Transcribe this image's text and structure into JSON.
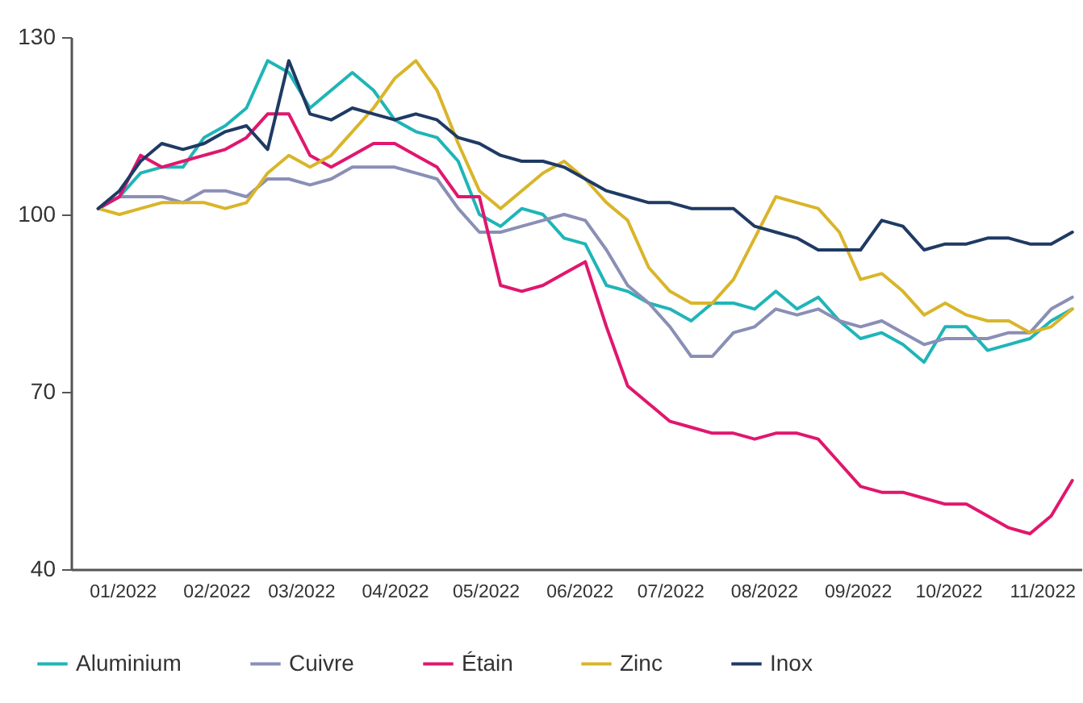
{
  "chart_data": {
    "type": "line",
    "x": [
      "2022-01-07",
      "2022-01-14",
      "2022-01-21",
      "2022-01-28",
      "2022-02-04",
      "2022-02-11",
      "2022-02-18",
      "2022-02-25",
      "2022-03-04",
      "2022-03-11",
      "2022-03-18",
      "2022-03-25",
      "2022-04-01",
      "2022-04-08",
      "2022-04-15",
      "2022-04-22",
      "2022-04-29",
      "2022-05-06",
      "2022-05-13",
      "2022-05-20",
      "2022-05-27",
      "2022-06-03",
      "2022-06-10",
      "2022-06-17",
      "2022-06-24",
      "2022-07-01",
      "2022-07-08",
      "2022-07-15",
      "2022-07-22",
      "2022-07-29",
      "2022-08-05",
      "2022-08-12",
      "2022-08-19",
      "2022-08-26",
      "2022-09-02",
      "2022-09-09",
      "2022-09-16",
      "2022-09-23",
      "2022-09-30",
      "2022-10-07",
      "2022-10-14",
      "2022-10-21",
      "2022-10-28",
      "2022-11-04",
      "2022-11-11",
      "2022-11-18",
      "2022-11-25"
    ],
    "series": [
      {
        "name": "Aluminium",
        "color": "#1fb5b8",
        "values": [
          101,
          103,
          107,
          108,
          108,
          113,
          115,
          118,
          126,
          124,
          118,
          121,
          124,
          121,
          116,
          114,
          113,
          109,
          100,
          98,
          101,
          100,
          96,
          95,
          88,
          87,
          85,
          84,
          82,
          85,
          85,
          84,
          87,
          84,
          86,
          82,
          79,
          80,
          78,
          75,
          81,
          81,
          77,
          78,
          79,
          82,
          84
        ]
      },
      {
        "name": "Cuivre",
        "color": "#8a8fb5",
        "values": [
          101,
          103,
          103,
          103,
          102,
          104,
          104,
          103,
          106,
          106,
          105,
          106,
          108,
          108,
          108,
          107,
          106,
          101,
          97,
          97,
          98,
          99,
          100,
          99,
          94,
          88,
          85,
          81,
          76,
          76,
          80,
          81,
          84,
          83,
          84,
          82,
          81,
          82,
          80,
          78,
          79,
          79,
          79,
          80,
          80,
          84,
          86
        ]
      },
      {
        "name": "Étain",
        "color": "#e0176e",
        "values": [
          101,
          103,
          110,
          108,
          109,
          110,
          111,
          113,
          117,
          117,
          110,
          108,
          110,
          112,
          112,
          110,
          108,
          103,
          103,
          88,
          87,
          88,
          90,
          92,
          81,
          71,
          68,
          65,
          64,
          63,
          63,
          62,
          63,
          63,
          62,
          58,
          54,
          53,
          53,
          52,
          51,
          51,
          49,
          47,
          46,
          49,
          55
        ]
      },
      {
        "name": "Zinc",
        "color": "#d9b52a",
        "values": [
          101,
          100,
          101,
          102,
          102,
          102,
          101,
          102,
          107,
          110,
          108,
          110,
          114,
          118,
          123,
          126,
          121,
          112,
          104,
          101,
          104,
          107,
          109,
          106,
          102,
          99,
          91,
          87,
          85,
          85,
          89,
          96,
          103,
          102,
          101,
          97,
          89,
          90,
          87,
          83,
          85,
          83,
          82,
          82,
          80,
          81,
          84
        ]
      },
      {
        "name": "Inox",
        "color": "#1f3a64",
        "values": [
          101,
          104,
          109,
          112,
          111,
          112,
          114,
          115,
          111,
          126,
          117,
          116,
          118,
          117,
          116,
          117,
          116,
          113,
          112,
          110,
          109,
          109,
          108,
          106,
          104,
          103,
          102,
          102,
          101,
          101,
          101,
          98,
          97,
          96,
          94,
          94,
          94,
          99,
          98,
          94,
          95,
          95,
          96,
          96,
          95,
          95,
          97
        ]
      }
    ],
    "xlim": [
      "2021-12-29",
      "2022-11-28"
    ],
    "xticks": [
      {
        "value": "2022-01-15",
        "label": "01/2022"
      },
      {
        "value": "2022-02-15",
        "label": "02/2022"
      },
      {
        "value": "2022-03-15",
        "label": "03/2022"
      },
      {
        "value": "2022-04-15",
        "label": "04/2022"
      },
      {
        "value": "2022-05-15",
        "label": "05/2022"
      },
      {
        "value": "2022-06-15",
        "label": "06/2022"
      },
      {
        "value": "2022-07-15",
        "label": "07/2022"
      },
      {
        "value": "2022-08-15",
        "label": "08/2022"
      },
      {
        "value": "2022-09-15",
        "label": "09/2022"
      },
      {
        "value": "2022-10-15",
        "label": "10/2022"
      },
      {
        "value": "2022-11-15",
        "label": "11/2022"
      }
    ],
    "ylim": [
      40,
      130
    ],
    "yticks": [
      40,
      70,
      100,
      130
    ],
    "legend": "bottom"
  }
}
